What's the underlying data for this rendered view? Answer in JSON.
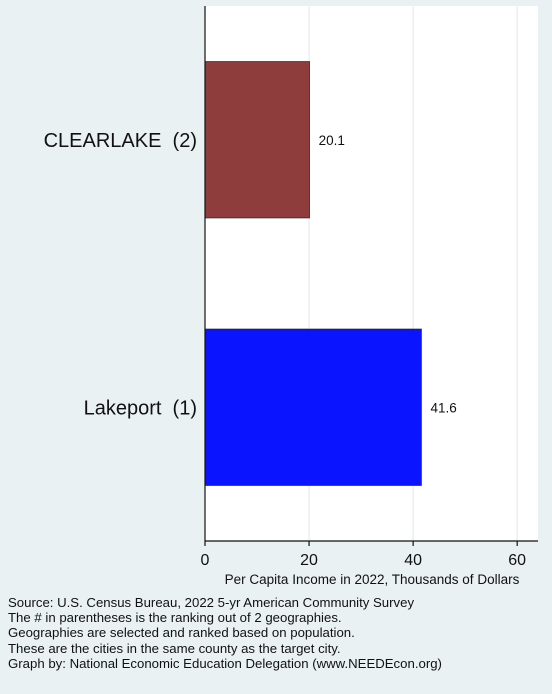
{
  "chart_data": {
    "type": "bar",
    "orientation": "horizontal",
    "title": "",
    "xlabel": "Per Capita Income in 2022, Thousands of Dollars",
    "ylabel": "",
    "xlim": [
      0,
      64
    ],
    "xticks": [
      0,
      20,
      40,
      60
    ],
    "grid": true,
    "legend": "none",
    "categories": [
      "CLEARLAKE  (2)",
      "Lakeport  (1)"
    ],
    "values": [
      20.1,
      41.6
    ],
    "value_labels": [
      "20.1",
      "41.6"
    ],
    "colors": [
      "#8f3c3c",
      "#0a14ff"
    ]
  },
  "notes": [
    "Source: U.S. Census Bureau, 2022 5-yr American Community Survey",
    "The # in parentheses is the ranking out of 2 geographies.",
    "Geographies are selected and ranked based on population.",
    "These are the cities in the same county as the target city.",
    "Graph by: National Economic Education Delegation (www.NEEDEcon.org)"
  ]
}
